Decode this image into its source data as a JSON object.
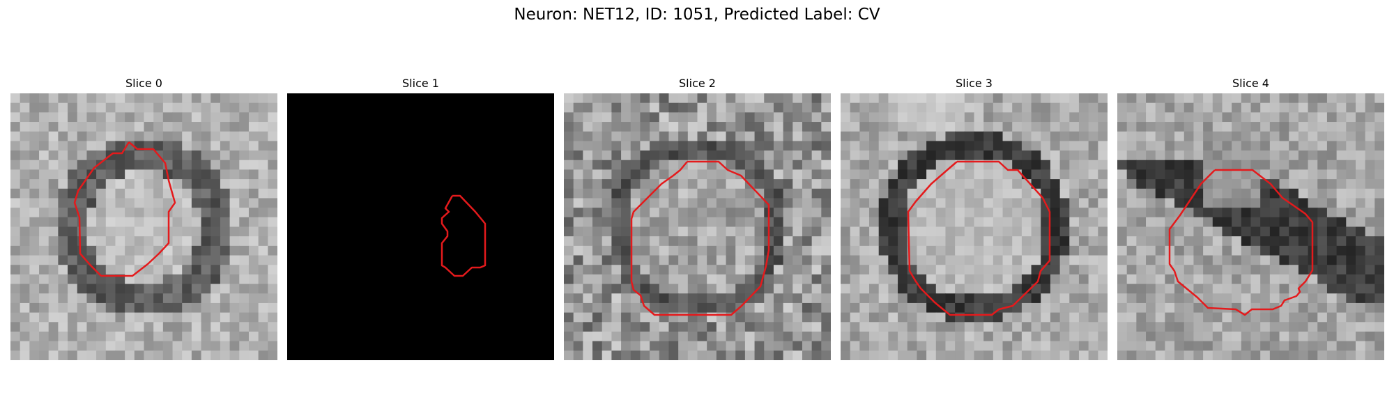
{
  "figure": {
    "title": "Neuron: NET12, ID: 1051, Predicted Label: CV"
  },
  "contour_color": "#e41a1c",
  "panels": [
    {
      "title": "Slice 0",
      "image": "grayscale-micrograph",
      "seed": 11,
      "pattern": "ring-dark"
    },
    {
      "title": "Slice 1",
      "image": "black-empty",
      "seed": 0,
      "pattern": "black"
    },
    {
      "title": "Slice 2",
      "image": "grayscale-micrograph",
      "seed": 23,
      "pattern": "ring-noisy"
    },
    {
      "title": "Slice 3",
      "image": "grayscale-micrograph",
      "seed": 37,
      "pattern": "ring-bright"
    },
    {
      "title": "Slice 4",
      "image": "grayscale-micrograph",
      "seed": 51,
      "pattern": "dark-band"
    }
  ]
}
